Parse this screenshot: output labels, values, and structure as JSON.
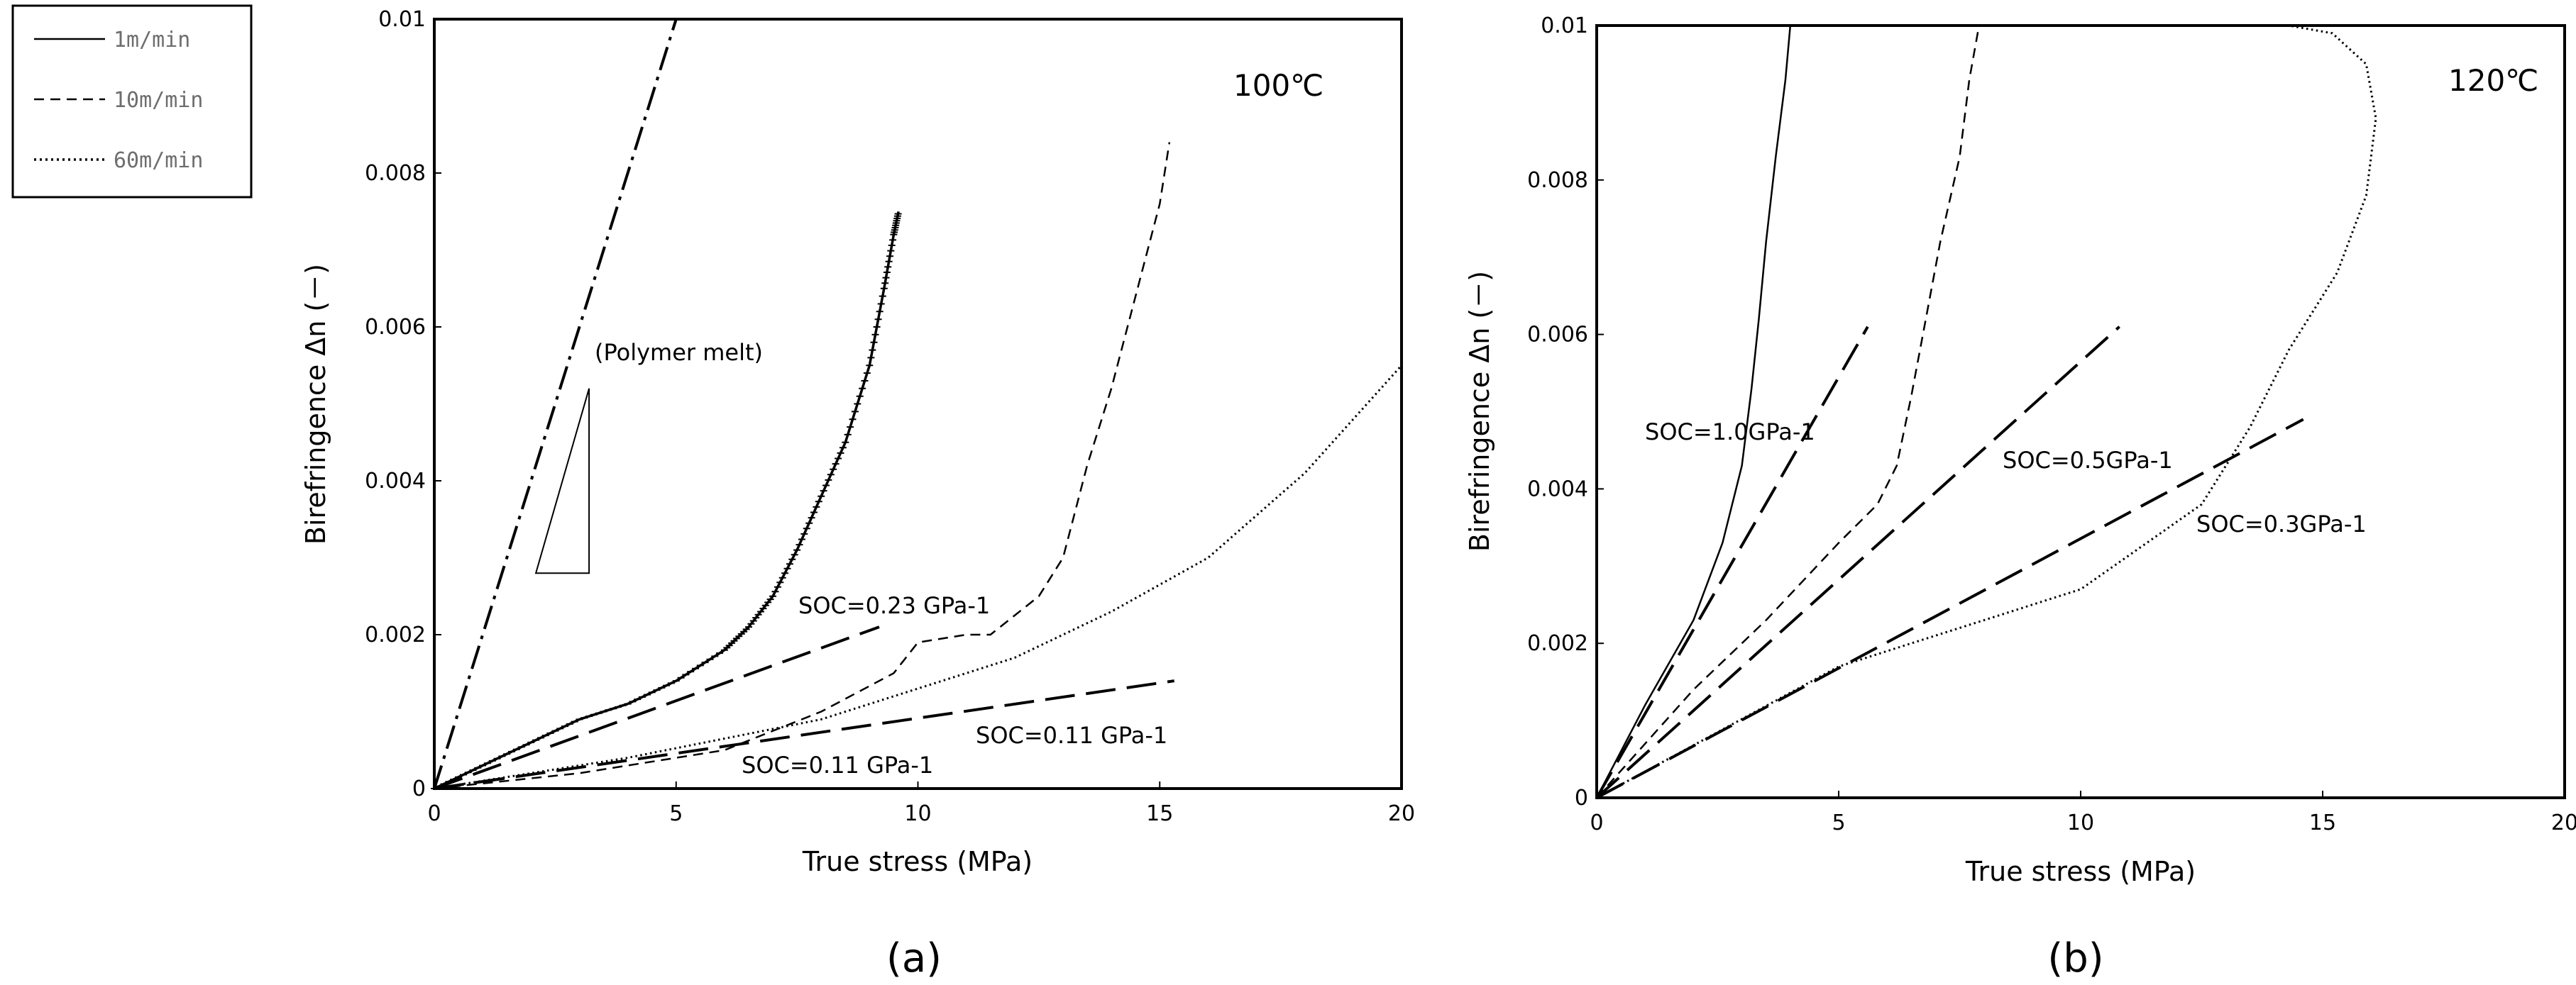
{
  "legend": {
    "items": [
      {
        "label": "1m/min",
        "style": "solid"
      },
      {
        "label": "10m/min",
        "style": "dashed"
      },
      {
        "label": "60m/min",
        "style": "dotted"
      }
    ]
  },
  "chart_data": [
    {
      "type": "line",
      "caption": "(a)",
      "temperature": "100℃",
      "xlabel": "True stress (MPa)",
      "ylabel": "Birefringence Δn (－)",
      "xlim": [
        0,
        20
      ],
      "ylim": [
        0,
        0.01
      ],
      "x_ticks": [
        "0",
        "5",
        "10",
        "15",
        "20"
      ],
      "y_ticks": [
        "0",
        "0.002",
        "0.004",
        "0.006",
        "0.008",
        "0.01"
      ],
      "series": [
        {
          "name": "1m/min",
          "style": "solid-noisy",
          "x": [
            0,
            1,
            2,
            3,
            4,
            5,
            6,
            6.5,
            7,
            7.5,
            8,
            8.5,
            9,
            9.3,
            9.5,
            9.6
          ],
          "y": [
            0,
            0.0003,
            0.0006,
            0.0009,
            0.0011,
            0.0014,
            0.0018,
            0.0021,
            0.0025,
            0.0031,
            0.0038,
            0.0045,
            0.0055,
            0.0065,
            0.0072,
            0.0075
          ]
        },
        {
          "name": "10m/min",
          "style": "dashed",
          "x": [
            0,
            3,
            6,
            8,
            9.5,
            10,
            11,
            11.5,
            12.5,
            13,
            13.5,
            14,
            14.5,
            15,
            15.2
          ],
          "y": [
            0,
            0.0002,
            0.0005,
            0.001,
            0.0015,
            0.0019,
            0.002,
            0.002,
            0.0025,
            0.003,
            0.0042,
            0.0052,
            0.0064,
            0.0076,
            0.0084
          ]
        },
        {
          "name": "60m/min",
          "style": "dotted",
          "x": [
            0,
            4,
            8,
            10,
            12,
            14,
            16,
            18,
            20
          ],
          "y": [
            0,
            0.0004,
            0.0009,
            0.0013,
            0.0017,
            0.0023,
            0.003,
            0.0041,
            0.0055
          ]
        },
        {
          "name": "SOC=0.23 GPa-1",
          "style": "longdash",
          "x": [
            0,
            9.2
          ],
          "y": [
            0,
            0.0021
          ]
        },
        {
          "name": "SOC=0.11 GPa-1",
          "style": "longdash",
          "x": [
            0,
            15.3
          ],
          "y": [
            0,
            0.0014
          ]
        },
        {
          "name": "Polymer melt",
          "style": "dashdot",
          "x": [
            0,
            5
          ],
          "y": [
            0,
            0.01
          ]
        }
      ],
      "annotations": [
        {
          "text": "(Polymer melt)"
        },
        {
          "text": "SOC=0.23 GPa-1"
        },
        {
          "text": "SOC=0.11 GPa-1"
        },
        {
          "text": "SOC=0.11 GPa-1"
        }
      ],
      "slope_triangle": {
        "x": [
          2.1,
          3.2,
          3.2
        ],
        "y": [
          0.0028,
          0.0028,
          0.0052
        ]
      }
    },
    {
      "type": "line",
      "caption": "(b)",
      "temperature": "120℃",
      "xlabel": "True stress (MPa)",
      "ylabel": "Birefringence Δn (－)",
      "xlim": [
        0,
        20
      ],
      "ylim": [
        0,
        0.01
      ],
      "x_ticks": [
        "0",
        "5",
        "10",
        "15",
        "20"
      ],
      "y_ticks": [
        "0",
        "0.002",
        "0.004",
        "0.006",
        "0.008",
        "0.01"
      ],
      "series": [
        {
          "name": "1m/min",
          "style": "solid",
          "x": [
            0,
            1,
            2,
            2.6,
            3.0,
            3.2,
            3.35,
            3.5,
            3.7,
            3.9,
            4.0
          ],
          "y": [
            0,
            0.0012,
            0.0023,
            0.0033,
            0.0043,
            0.0053,
            0.0062,
            0.0072,
            0.0083,
            0.0093,
            0.01
          ]
        },
        {
          "name": "10m/min",
          "style": "dashed",
          "x": [
            0,
            2,
            3.5,
            5,
            5.8,
            6.2,
            6.5,
            6.8,
            7.1,
            7.5,
            7.7,
            7.9
          ],
          "y": [
            0,
            0.0014,
            0.0023,
            0.0033,
            0.0038,
            0.0043,
            0.0052,
            0.0062,
            0.0072,
            0.0083,
            0.0093,
            0.01
          ]
        },
        {
          "name": "60m/min",
          "style": "dotted",
          "x": [
            0,
            5,
            10,
            12.5,
            13.5,
            14.3,
            15.3,
            15.9,
            16.1,
            15.9,
            15.2,
            14.3
          ],
          "y": [
            0,
            0.0017,
            0.0027,
            0.0038,
            0.0048,
            0.0058,
            0.0068,
            0.0078,
            0.0088,
            0.0095,
            0.0099,
            0.01
          ]
        },
        {
          "name": "SOC=1.0GPa-1",
          "style": "longdash",
          "x": [
            0,
            5.6
          ],
          "y": [
            0,
            0.0061
          ]
        },
        {
          "name": "SOC=0.5GPa-1",
          "style": "longdash",
          "x": [
            0,
            10.8
          ],
          "y": [
            0,
            0.0061
          ]
        },
        {
          "name": "SOC=0.3GPa-1",
          "style": "longdash",
          "x": [
            0,
            14.6
          ],
          "y": [
            0,
            0.0049
          ]
        }
      ],
      "annotations": [
        {
          "text": "SOC=1.0GPa-1"
        },
        {
          "text": "SOC=0.5GPa-1"
        },
        {
          "text": "SOC=0.3GPa-1"
        }
      ]
    }
  ]
}
